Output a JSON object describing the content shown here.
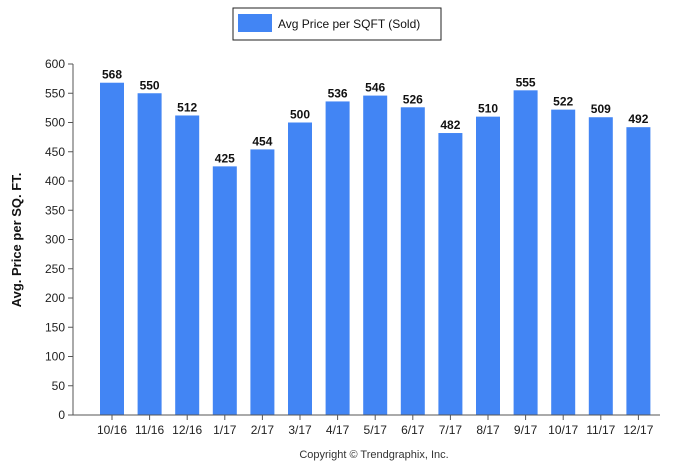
{
  "chart_data": {
    "type": "bar",
    "categories": [
      "10/16",
      "11/16",
      "12/16",
      "1/17",
      "2/17",
      "3/17",
      "4/17",
      "5/17",
      "6/17",
      "7/17",
      "8/17",
      "9/17",
      "10/17",
      "11/17",
      "12/17"
    ],
    "series": [
      {
        "name": "Avg Price per SQFT (Sold)",
        "values": [
          568,
          550,
          512,
          425,
          454,
          500,
          536,
          546,
          526,
          482,
          510,
          555,
          522,
          509,
          492
        ],
        "color": "#4285f4"
      }
    ],
    "ylabel": "Avg. Price per SQ. FT.",
    "xlabel": "",
    "ylim": [
      0,
      600
    ],
    "yticks": [
      0,
      50,
      100,
      150,
      200,
      250,
      300,
      350,
      400,
      450,
      500,
      550,
      600
    ],
    "grid": false,
    "legend_position": "top-center",
    "data_labels": true
  },
  "footer": {
    "copyright": "Copyright © Trendgraphix, Inc."
  }
}
